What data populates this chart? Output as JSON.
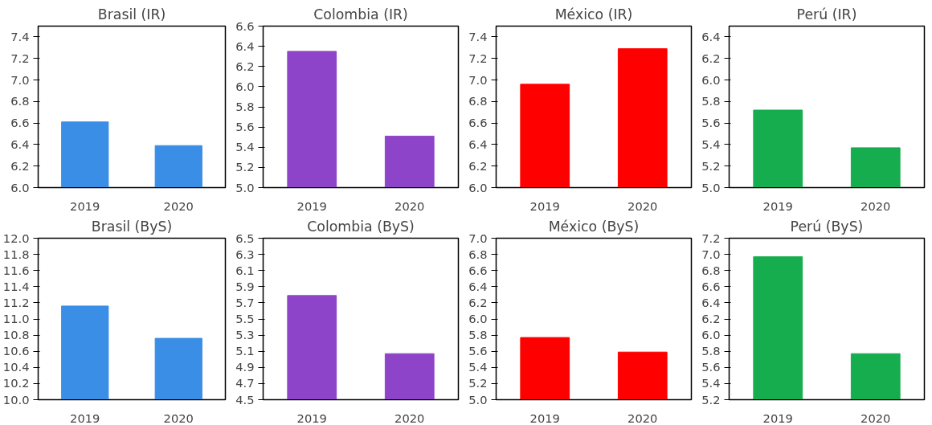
{
  "chart_data": [
    {
      "type": "bar",
      "title": "Brasil (IR)",
      "categories": [
        "2019",
        "2020"
      ],
      "values": [
        6.61,
        6.39
      ],
      "color": "#3a8ee6",
      "ylim": [
        6.0,
        7.5
      ],
      "yticks": [
        {
          "value": 6.0,
          "label": "6.0"
        },
        6.2,
        6.4,
        6.6,
        6.8,
        {
          "value": 7.0,
          "label": "7.0"
        },
        7.2,
        7.4
      ],
      "grid": false
    },
    {
      "type": "bar",
      "title": "Colombia (IR)",
      "categories": [
        "2019",
        "2020"
      ],
      "values": [
        6.35,
        5.51
      ],
      "color": "#8e44c8",
      "ylim": [
        5.0,
        6.6
      ],
      "yticks": [
        {
          "value": 5.0,
          "label": "5.0"
        },
        5.2,
        5.4,
        5.6,
        5.8,
        {
          "value": 6.0,
          "label": "6.0"
        },
        6.2,
        6.4,
        6.6
      ],
      "grid": false
    },
    {
      "type": "bar",
      "title": "México (IR)",
      "categories": [
        "2019",
        "2020"
      ],
      "values": [
        6.96,
        7.29
      ],
      "color": "#ff0000",
      "ylim": [
        6.0,
        7.5
      ],
      "yticks": [
        {
          "value": 6.0,
          "label": "6.0"
        },
        6.2,
        6.4,
        6.6,
        6.8,
        {
          "value": 7.0,
          "label": "7.0"
        },
        7.2,
        7.4
      ],
      "grid": false
    },
    {
      "type": "bar",
      "title": "Perú (IR)",
      "categories": [
        "2019",
        "2020"
      ],
      "values": [
        5.72,
        5.37
      ],
      "color": "#16ad4f",
      "ylim": [
        5.0,
        6.5
      ],
      "yticks": [
        {
          "value": 5.0,
          "label": "5.0"
        },
        5.2,
        5.4,
        5.6,
        5.8,
        {
          "value": 6.0,
          "label": "6.0"
        },
        6.2,
        6.4
      ],
      "grid": false
    },
    {
      "type": "bar",
      "title": "Brasil (ByS)",
      "categories": [
        "2019",
        "2020"
      ],
      "values": [
        11.16,
        10.76
      ],
      "color": "#3a8ee6",
      "ylim": [
        10.0,
        12.0
      ],
      "yticks": [
        {
          "value": 10.0,
          "label": "10.0"
        },
        10.2,
        10.4,
        10.6,
        10.8,
        {
          "value": 11.0,
          "label": "11.0"
        },
        11.2,
        11.4,
        11.6,
        11.8,
        {
          "value": 12.0,
          "label": "12.0"
        }
      ],
      "grid": false
    },
    {
      "type": "bar",
      "title": "Colombia (ByS)",
      "categories": [
        "2019",
        "2020"
      ],
      "values": [
        5.79,
        5.07
      ],
      "color": "#8e44c8",
      "ylim": [
        4.5,
        6.5
      ],
      "yticks": [
        4.5,
        4.7,
        4.9,
        5.1,
        5.3,
        5.5,
        5.7,
        5.9,
        6.1,
        6.3,
        6.5
      ],
      "grid": false
    },
    {
      "type": "bar",
      "title": "México (ByS)",
      "categories": [
        "2019",
        "2020"
      ],
      "values": [
        5.77,
        5.59
      ],
      "color": "#ff0000",
      "ylim": [
        5.0,
        7.0
      ],
      "yticks": [
        {
          "value": 5.0,
          "label": "5.0"
        },
        5.2,
        5.4,
        5.6,
        5.8,
        {
          "value": 6.0,
          "label": "6.0"
        },
        6.2,
        6.4,
        6.6,
        6.8,
        {
          "value": 7.0,
          "label": "7.0"
        }
      ],
      "grid": false
    },
    {
      "type": "bar",
      "title": "Perú (ByS)",
      "categories": [
        "2019",
        "2020"
      ],
      "values": [
        6.97,
        5.77
      ],
      "color": "#16ad4f",
      "ylim": [
        5.2,
        7.2
      ],
      "yticks": [
        5.2,
        5.4,
        5.6,
        5.8,
        {
          "value": 6.0,
          "label": "6.0"
        },
        6.2,
        6.4,
        6.6,
        6.8,
        {
          "value": 7.0,
          "label": "7.0"
        },
        7.2
      ],
      "grid": false
    }
  ]
}
